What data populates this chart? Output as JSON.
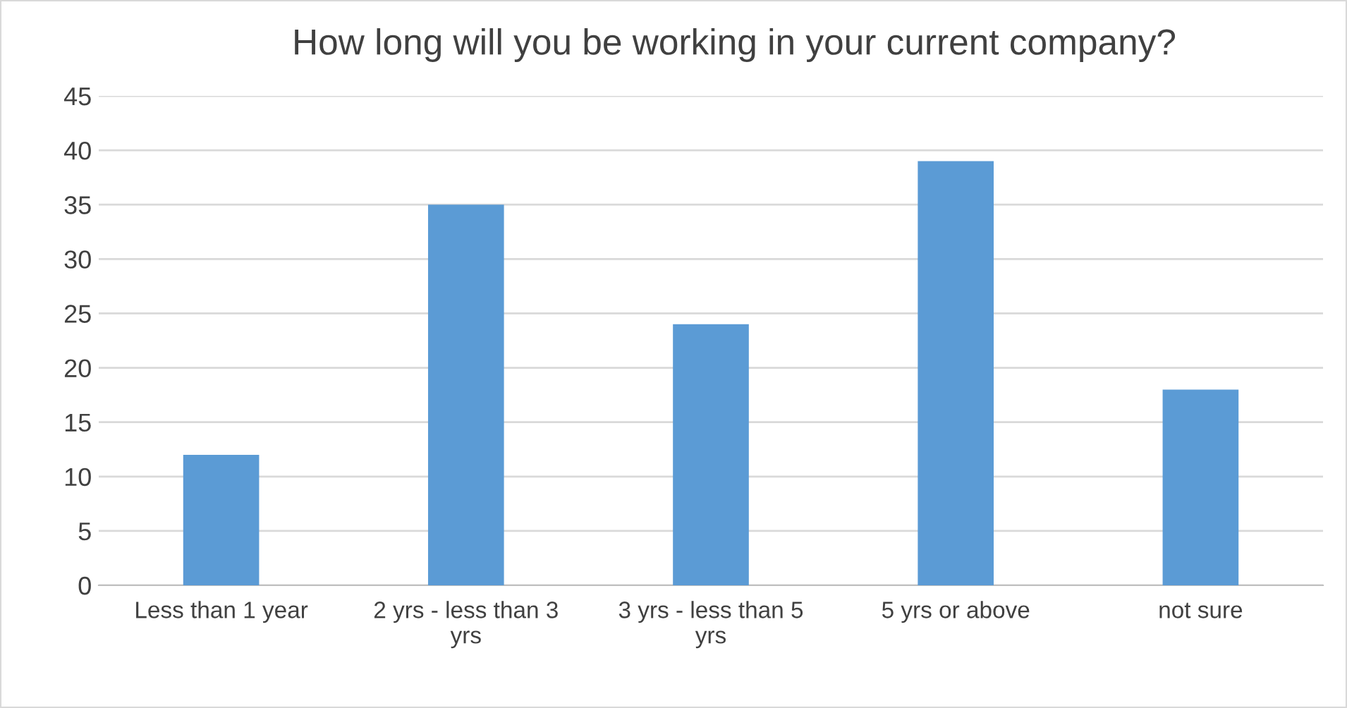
{
  "chart_data": {
    "type": "bar",
    "title": "How long will you be working in your current company?",
    "categories": [
      "Less than 1 year",
      "2 yrs - less than 3\nyrs",
      "3 yrs - less than 5\nyrs",
      "5 yrs or above",
      "not sure"
    ],
    "values": [
      12,
      35,
      24,
      39,
      18
    ],
    "color": "#5b9bd5",
    "ylim": [
      0,
      45
    ],
    "yticks": [
      0,
      5,
      10,
      15,
      20,
      25,
      30,
      35,
      40,
      45
    ],
    "grid": "y",
    "legend": false
  }
}
